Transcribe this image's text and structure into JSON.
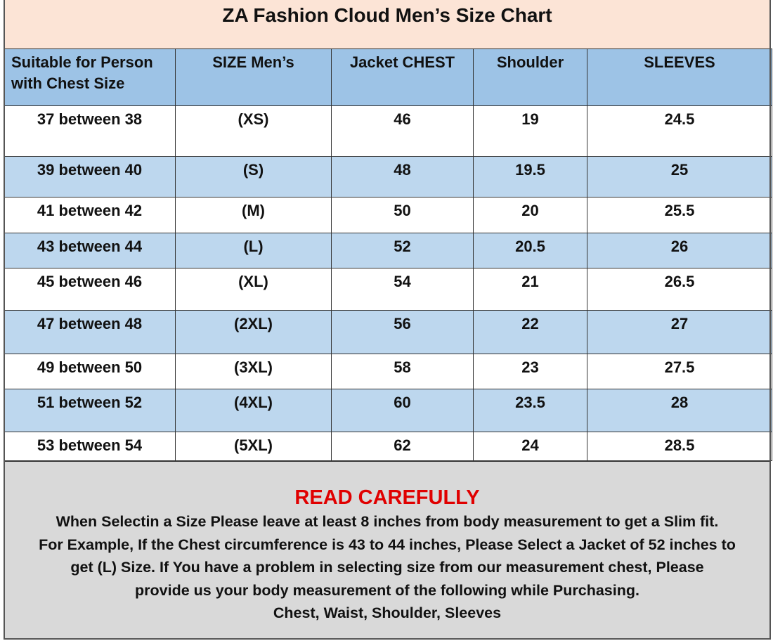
{
  "title": "ZA Fashion Cloud Men’s Size Chart",
  "columns": [
    "Suitable for Person with Chest Size",
    "SIZE Men’s",
    "Jacket CHEST",
    "Shoulder",
    "SLEEVES"
  ],
  "rows": [
    [
      "37 between 38",
      "(XS)",
      "46",
      "19",
      "24.5"
    ],
    [
      "39 between 40",
      "(S)",
      "48",
      "19.5",
      "25"
    ],
    [
      "41 between 42",
      "(M)",
      "50",
      "20",
      "25.5"
    ],
    [
      "43 between 44",
      "(L)",
      "52",
      "20.5",
      "26"
    ],
    [
      "45 between 46",
      "(XL)",
      "54",
      "21",
      "26.5"
    ],
    [
      "47 between 48",
      "(2XL)",
      "56",
      "22",
      "27"
    ],
    [
      "49 between 50",
      "(3XL)",
      "58",
      "23",
      "27.5"
    ],
    [
      "51 between 52",
      "(4XL)",
      "60",
      "23.5",
      "28"
    ],
    [
      "53 between 54",
      "(5XL)",
      "62",
      "24",
      "28.5"
    ]
  ],
  "notes": {
    "heading": "READ CAREFULLY",
    "lines": [
      "When Selectin a Size Please leave at least 8 inches from body measurement to get a Slim fit.",
      "For Example, If the Chest circumference is 43 to 44 inches, Please Select a Jacket of 52 inches to",
      "get (L) Size. If You have a problem in selecting size from our measurement chest, Please",
      "provide us your body measurement of the following while Purchasing.",
      "Chest, Waist, Shoulder, Sleeves"
    ]
  },
  "colors": {
    "title_bg": "#fce4d6",
    "header_bg": "#9dc3e6",
    "alt_row_bg": "#bdd7ee",
    "notes_bg": "#d9d9d9",
    "heading_red": "#e00000"
  }
}
